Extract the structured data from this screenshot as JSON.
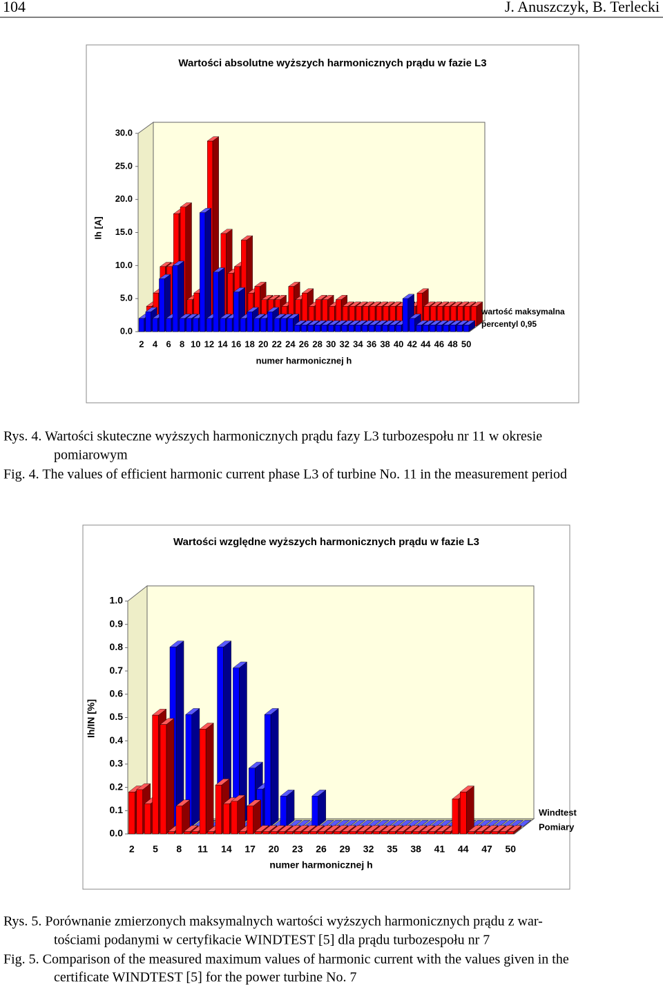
{
  "header": {
    "page_number": "104",
    "authors": "J. Anuszczyk, B. Terlecki"
  },
  "chart_data": [
    {
      "type": "bar3d",
      "title": "Wartości absolutne wyższych harmonicznych prądu w fazie L3",
      "xlabel": "numer harmonicznej h",
      "ylabel": "Ih [A]",
      "categories": [
        2,
        null,
        4,
        null,
        6,
        null,
        8,
        null,
        10,
        null,
        12,
        null,
        14,
        null,
        16,
        null,
        18,
        null,
        20,
        null,
        22,
        null,
        24,
        null,
        26,
        null,
        28,
        null,
        30,
        null,
        32,
        null,
        34,
        null,
        36,
        null,
        38,
        null,
        40,
        null,
        42,
        null,
        44,
        null,
        46,
        null,
        48,
        null,
        50
      ],
      "series": [
        {
          "name": "wartość maksymalna",
          "color": "#ff0000",
          "values": [
            3,
            5,
            9,
            9,
            17,
            18,
            4,
            5,
            10,
            28,
            6,
            14,
            8,
            9,
            13,
            5,
            6,
            4,
            4,
            4,
            3,
            6,
            4,
            5,
            3,
            4,
            4,
            3,
            4,
            3,
            3,
            3,
            3,
            3,
            3,
            3,
            3,
            3,
            3,
            3,
            5,
            3,
            3,
            3,
            3,
            3,
            3,
            3,
            3
          ]
        },
        {
          "name": "percentyl 0,95",
          "color": "#0000ff",
          "values": [
            2,
            3,
            2,
            8,
            2,
            10,
            2,
            2,
            2,
            18,
            2,
            9,
            2,
            2,
            6,
            2,
            3,
            2,
            2,
            3,
            2,
            2,
            2,
            1,
            1,
            1,
            1,
            1,
            1,
            1,
            1,
            1,
            1,
            1,
            1,
            1,
            1,
            1,
            1,
            5,
            2,
            1,
            1,
            1,
            1,
            1,
            1,
            1,
            1
          ]
        }
      ],
      "ylim": [
        0,
        30
      ],
      "yticks": [
        {
          "value": 0,
          "label": "0.0"
        },
        {
          "value": 5,
          "label": "5.0"
        },
        {
          "value": 10,
          "label": "10.0"
        },
        {
          "value": 15,
          "label": "15.0"
        },
        {
          "value": 20,
          "label": "20.0"
        },
        {
          "value": 25,
          "label": "25.0"
        },
        {
          "value": 30,
          "label": "30.0"
        }
      ],
      "legend": "right",
      "grid": false
    },
    {
      "type": "bar3d",
      "title": "Wartości względne wyższych harmonicznych prądu w fazie L3",
      "xlabel": "numer harmonicznej h",
      "ylabel": "Ih/IN [%]",
      "categories": [
        2,
        null,
        null,
        5,
        null,
        null,
        8,
        null,
        null,
        11,
        null,
        null,
        14,
        null,
        null,
        17,
        null,
        null,
        20,
        null,
        null,
        23,
        null,
        null,
        26,
        null,
        null,
        29,
        null,
        null,
        32,
        null,
        null,
        35,
        null,
        null,
        38,
        null,
        null,
        41,
        null,
        null,
        44,
        null,
        null,
        47,
        null,
        null,
        50
      ],
      "series": [
        {
          "name": "Windtest",
          "color": "#0000ff",
          "values": [
            0,
            0,
            0.24,
            0,
            0.77,
            0,
            0.48,
            0,
            0,
            0,
            0.77,
            0,
            0.68,
            0,
            0.25,
            0.16,
            0.48,
            0,
            0.13,
            0,
            0,
            0,
            0.13,
            0,
            0,
            0,
            0,
            0,
            0,
            0,
            0,
            0,
            0,
            0,
            0,
            0,
            0,
            0,
            0,
            0,
            0,
            0,
            0,
            0,
            0,
            0,
            0,
            0,
            0
          ]
        },
        {
          "name": "Pomiary",
          "color": "#ff0000",
          "values": [
            0.18,
            0.19,
            0.13,
            0.51,
            0.47,
            0.01,
            0.12,
            0.01,
            0.01,
            0.45,
            0.01,
            0.21,
            0.13,
            0.14,
            0.01,
            0.12,
            0.01,
            0.01,
            0.01,
            0.01,
            0.01,
            0.01,
            0.01,
            0.01,
            0.01,
            0.01,
            0.01,
            0.01,
            0.01,
            0.01,
            0.01,
            0.01,
            0.01,
            0.01,
            0.01,
            0.01,
            0.01,
            0.01,
            0.01,
            0.01,
            0.01,
            0.15,
            0.18,
            0.01,
            0.01,
            0.01,
            0.01,
            0.01,
            0.01
          ]
        }
      ],
      "ylim": [
        0,
        1
      ],
      "yticks": [
        {
          "value": 0,
          "label": "0.0"
        },
        0.1,
        0.2,
        0.3,
        0.4,
        0.5,
        0.6,
        0.7,
        0.8,
        0.9,
        {
          "value": 1,
          "label": "1.0"
        }
      ],
      "legend": "right",
      "grid": false
    }
  ],
  "captions": [
    [
      "Rys. 4. Wartości skuteczne wyższych harmonicznych prądu fazy L3 turbozespołu nr 11 w okresie",
      "pomiarowym"
    ],
    [
      "Fig. 4. The values of efficient harmonic current phase L3 of turbine No. 11 in the measurement period"
    ],
    [
      "Rys. 5. Porównanie zmierzonych maksymalnych wartości wyższych harmonicznych prądu z war-",
      "tościami podanymi w certyfikacie WINDTEST [5] dla prądu  turbozespołu nr 7"
    ],
    [
      "Fig. 5.  Comparison of the measured maximum values of harmonic current with the values given in the",
      "certificate WINDTEST [5] for the power turbine No. 7"
    ]
  ]
}
